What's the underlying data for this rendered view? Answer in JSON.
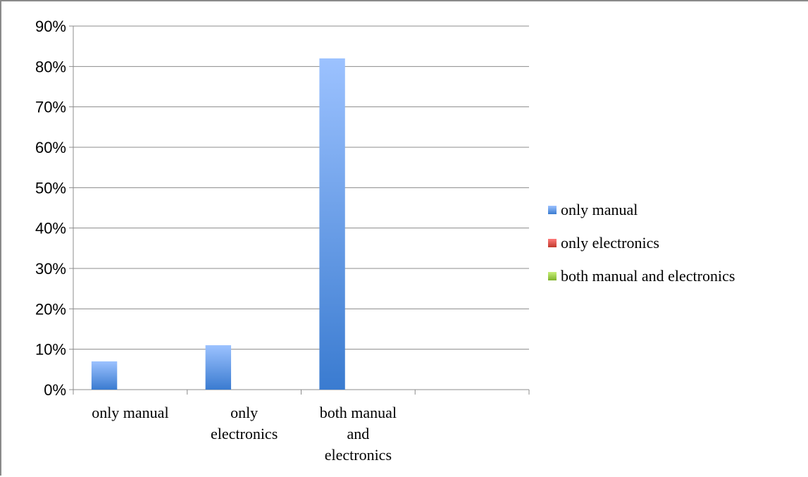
{
  "chart_data": {
    "type": "bar",
    "categories": [
      [
        "only manual"
      ],
      [
        "only",
        "electronics"
      ],
      [
        "both manual",
        "and",
        "electronics"
      ],
      [
        ""
      ]
    ],
    "series": [
      {
        "name": "only manual",
        "values": [
          7,
          11,
          82,
          null
        ],
        "color": "#3a7bd0",
        "color_light": "#9cc2ff"
      },
      {
        "name": "only electronics",
        "values": [
          null,
          null,
          null,
          null
        ],
        "color": "#c0392b",
        "color_light": "#ff7a7a"
      },
      {
        "name": "both manual and electronics",
        "values": [
          null,
          null,
          null,
          null
        ],
        "color": "#7fb32a",
        "color_light": "#c8f07a"
      }
    ],
    "y_ticks": [
      "0%",
      "10%",
      "20%",
      "30%",
      "40%",
      "50%",
      "60%",
      "70%",
      "80%",
      "90%"
    ],
    "ylim": [
      0,
      90
    ],
    "grid": true,
    "legend_position": "right",
    "title": "",
    "xlabel": "",
    "ylabel": ""
  }
}
